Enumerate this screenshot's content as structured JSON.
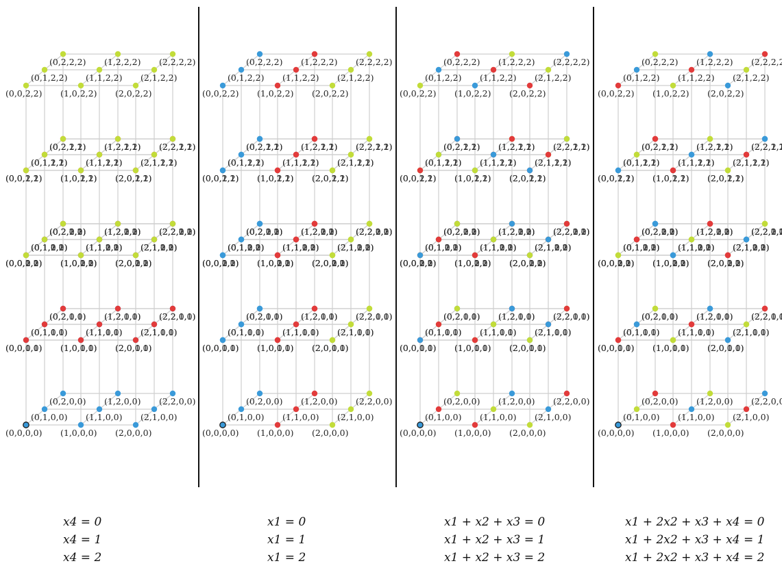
{
  "colors": {
    "class_0": "#3a9ad9",
    "class_1": "#e23b3b",
    "class_2": "#c2dc3a",
    "grid": "#cfcfcf",
    "label": "#222222",
    "separator": "#111111"
  },
  "label_format": "(x1,x2,x3,x4)",
  "icons": {
    "lattice_point": "filled-circle-icon",
    "origin_point": "outlined-circle-icon"
  },
  "grid_coordinate_range": [
    0,
    1,
    2
  ],
  "panels": [
    {
      "id": "panel-x4",
      "coefficients": [
        0,
        0,
        0,
        1
      ],
      "captions": [
        "x4 = 0",
        "x4 = 1",
        "x4 = 2"
      ]
    },
    {
      "id": "panel-x1",
      "coefficients": [
        1,
        0,
        0,
        0
      ],
      "captions": [
        "x1 = 0",
        "x1 = 1",
        "x1 = 2"
      ]
    },
    {
      "id": "panel-x1x2x3",
      "coefficients": [
        1,
        1,
        1,
        0
      ],
      "captions": [
        "x1 + x2 + x3 = 0",
        "x1 + x2 + x3 = 1",
        "x1 + x2 + x3 = 2"
      ]
    },
    {
      "id": "panel-weighted",
      "coefficients": [
        1,
        2,
        1,
        1
      ],
      "captions": [
        "x1 + 2x2 + x3 + x4 = 0",
        "x1 + 2x2 + x3 + x4 = 1",
        "x1 + 2x2 + x3 + x4 = 2"
      ]
    }
  ]
}
